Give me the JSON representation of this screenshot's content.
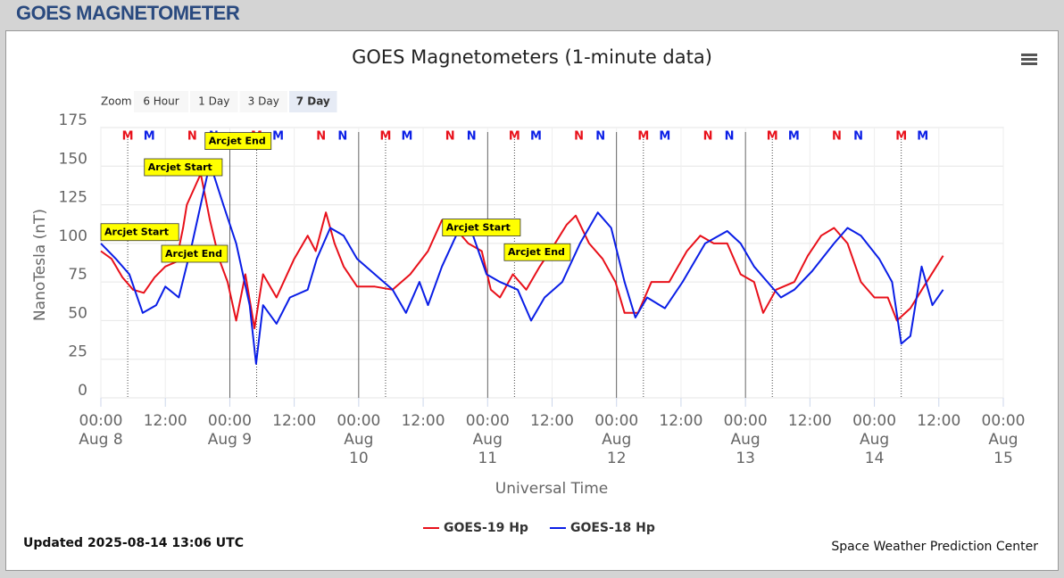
{
  "header": {
    "title": "GOES MAGNETOMETER"
  },
  "zoom": {
    "label": "Zoom",
    "buttons": [
      "6 Hour",
      "1 Day",
      "3 Day",
      "7 Day"
    ],
    "selected": 3
  },
  "chart_data": {
    "type": "line",
    "title": "GOES Magnetometers (1-minute data)",
    "x_label": "Universal Time",
    "y_label": "NanoTesla (nT)",
    "xlim": [
      0,
      168
    ],
    "ylim": [
      0,
      175
    ],
    "yticks": [
      0,
      25,
      50,
      75,
      100,
      125,
      150,
      175
    ],
    "xticks": [
      {
        "value": 0,
        "label": "00:00 Aug 8"
      },
      {
        "value": 12,
        "label": "12:00"
      },
      {
        "value": 24,
        "label": "00:00 Aug 9"
      },
      {
        "value": 36,
        "label": "12:00"
      },
      {
        "value": 48,
        "label": "00:00 Aug 10"
      },
      {
        "value": 60,
        "label": "12:00"
      },
      {
        "value": 72,
        "label": "00:00 Aug 11"
      },
      {
        "value": 84,
        "label": "12:00"
      },
      {
        "value": 96,
        "label": "00:00 Aug 12"
      },
      {
        "value": 108,
        "label": "12:00"
      },
      {
        "value": 120,
        "label": "00:00 Aug 13"
      },
      {
        "value": 132,
        "label": "12:00"
      },
      {
        "value": 144,
        "label": "00:00 Aug 14"
      },
      {
        "value": 156,
        "label": "12:00"
      },
      {
        "value": 168,
        "label": "00:00 Aug 15"
      }
    ],
    "grid": true,
    "plot_lines": [
      24,
      48,
      72,
      96,
      120
    ],
    "series": [
      {
        "name": "GOES-19 Hp",
        "color": "#e8101a",
        "x": [
          0,
          2,
          4,
          6,
          8,
          10,
          12,
          14,
          15.3,
          16,
          18.6,
          20.3,
          22,
          23.6,
          25.2,
          26.9,
          28.6,
          30.2,
          32.7,
          36,
          38.5,
          40,
          41.9,
          43.5,
          45.2,
          47.7,
          51,
          54.3,
          57.6,
          60.9,
          63.5,
          65.9,
          68.4,
          70.9,
          72.6,
          74.3,
          76.7,
          79.2,
          81.7,
          84.2,
          86.7,
          88.4,
          90.9,
          93.4,
          95.8,
          97.5,
          100,
          102.5,
          105.8,
          109.1,
          111.6,
          114.1,
          116.6,
          119.1,
          121.6,
          123.3,
          125.7,
          129.1,
          131.6,
          134.1,
          136.5,
          139,
          141.5,
          144,
          146.5,
          148.2,
          150.7,
          153.2,
          156.8
        ],
        "values": [
          95,
          90,
          78,
          70,
          68,
          78,
          85,
          88,
          110,
          125,
          145,
          115,
          90,
          75,
          50,
          80,
          45,
          80,
          65,
          90,
          105,
          95,
          120,
          100,
          85,
          72,
          72,
          70,
          80,
          95,
          115,
          110,
          100,
          95,
          70,
          65,
          80,
          70,
          85,
          98,
          112,
          118,
          100,
          90,
          75,
          55,
          55,
          75,
          75,
          95,
          105,
          100,
          100,
          80,
          75,
          55,
          70,
          75,
          92,
          105,
          110,
          100,
          75,
          65,
          65,
          50,
          58,
          72,
          92
        ]
      },
      {
        "name": "GOES-18 Hp",
        "color": "#0a1ee6",
        "x": [
          0,
          2.8,
          5.3,
          7.8,
          10.3,
          12,
          14.5,
          17,
          20.3,
          22.8,
          25.2,
          27.7,
          28.9,
          30.2,
          32.7,
          35.2,
          38.5,
          40.2,
          42.7,
          45.2,
          47.7,
          51,
          54.3,
          56.8,
          59.3,
          60.9,
          63.5,
          66.8,
          69.3,
          71.8,
          74.3,
          77.6,
          80.1,
          82.6,
          85.9,
          89.2,
          92.5,
          95,
          97.5,
          99.5,
          101.7,
          105,
          108.3,
          112.5,
          116.6,
          119.1,
          121.6,
          124.1,
          126.6,
          129.1,
          132.4,
          136.5,
          139,
          141.5,
          144.9,
          147.3,
          149,
          150.7,
          152.8,
          154.8,
          156.8
        ],
        "values": [
          100,
          90,
          80,
          55,
          60,
          72,
          65,
          100,
          152,
          125,
          100,
          60,
          22,
          60,
          48,
          65,
          70,
          90,
          110,
          105,
          90,
          80,
          70,
          55,
          75,
          60,
          85,
          110,
          105,
          80,
          75,
          70,
          50,
          65,
          75,
          100,
          120,
          110,
          75,
          52,
          65,
          58,
          75,
          100,
          108,
          100,
          85,
          75,
          65,
          70,
          82,
          100,
          110,
          105,
          90,
          75,
          35,
          40,
          85,
          60,
          70
        ]
      }
    ],
    "annotations": [
      {
        "text": "Arcjet Start",
        "x": 0,
        "y": 107
      },
      {
        "text": "Arcjet End",
        "x": 11.3,
        "y": 93
      },
      {
        "text": "Arcjet Start",
        "x": 8.1,
        "y": 149
      },
      {
        "text": "Arcjet End",
        "x": 19.4,
        "y": 166
      },
      {
        "text": "Arcjet Start",
        "x": 63.6,
        "y": 110
      },
      {
        "text": "Arcjet End",
        "x": 75.1,
        "y": 94
      }
    ],
    "markers": [
      {
        "label": "M",
        "color": "#e8101a",
        "x": 5
      },
      {
        "label": "M",
        "color": "#0a1ee6",
        "x": 9
      },
      {
        "label": "N",
        "color": "#e8101a",
        "x": 17
      },
      {
        "label": "N",
        "color": "#0a1ee6",
        "x": 21
      },
      {
        "label": "M",
        "color": "#e8101a",
        "x": 29
      },
      {
        "label": "M",
        "color": "#0a1ee6",
        "x": 33
      },
      {
        "label": "N",
        "color": "#e8101a",
        "x": 41
      },
      {
        "label": "N",
        "color": "#0a1ee6",
        "x": 45
      },
      {
        "label": "M",
        "color": "#e8101a",
        "x": 53
      },
      {
        "label": "M",
        "color": "#0a1ee6",
        "x": 57
      },
      {
        "label": "N",
        "color": "#e8101a",
        "x": 65
      },
      {
        "label": "N",
        "color": "#0a1ee6",
        "x": 69
      },
      {
        "label": "M",
        "color": "#e8101a",
        "x": 77
      },
      {
        "label": "M",
        "color": "#0a1ee6",
        "x": 81
      },
      {
        "label": "N",
        "color": "#e8101a",
        "x": 89
      },
      {
        "label": "N",
        "color": "#0a1ee6",
        "x": 93
      },
      {
        "label": "M",
        "color": "#e8101a",
        "x": 101
      },
      {
        "label": "M",
        "color": "#0a1ee6",
        "x": 105
      },
      {
        "label": "N",
        "color": "#e8101a",
        "x": 113
      },
      {
        "label": "N",
        "color": "#0a1ee6",
        "x": 117
      },
      {
        "label": "M",
        "color": "#e8101a",
        "x": 125
      },
      {
        "label": "M",
        "color": "#0a1ee6",
        "x": 129
      },
      {
        "label": "N",
        "color": "#e8101a",
        "x": 137
      },
      {
        "label": "N",
        "color": "#0a1ee6",
        "x": 141
      },
      {
        "label": "M",
        "color": "#e8101a",
        "x": 149
      },
      {
        "label": "M",
        "color": "#0a1ee6",
        "x": 153
      }
    ]
  },
  "footer": {
    "updated": "Updated 2025-08-14 13:06 UTC",
    "credit": "Space Weather Prediction Center"
  }
}
